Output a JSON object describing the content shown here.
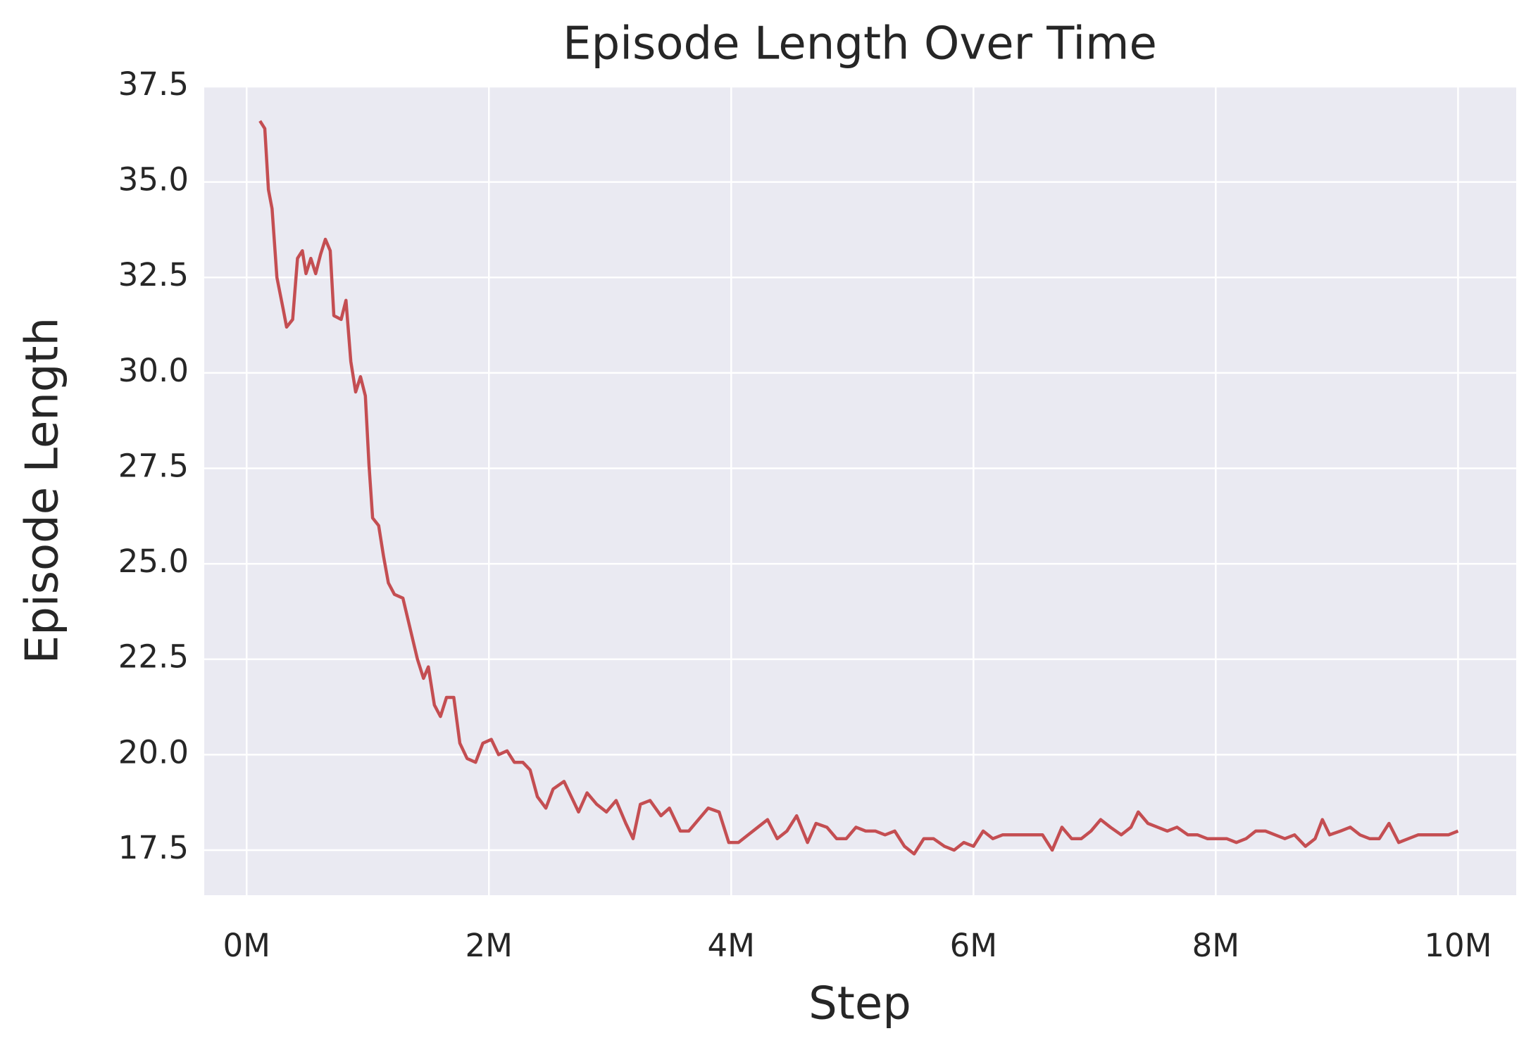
{
  "chart_data": {
    "type": "line",
    "title": "Episode Length Over Time",
    "xlabel": "Step",
    "ylabel": "Episode Length",
    "grid": true,
    "background": "#eaeaf2",
    "x": [
      110000,
      150000,
      180000,
      210000,
      250000,
      300000,
      330000,
      380000,
      420000,
      460000,
      490000,
      530000,
      570000,
      610000,
      650000,
      690000,
      720000,
      780000,
      820000,
      860000,
      900000,
      940000,
      980000,
      1010000,
      1040000,
      1090000,
      1130000,
      1170000,
      1220000,
      1290000,
      1350000,
      1410000,
      1460000,
      1500000,
      1550000,
      1600000,
      1650000,
      1710000,
      1760000,
      1820000,
      1890000,
      1950000,
      2020000,
      2080000,
      2150000,
      2210000,
      2280000,
      2340000,
      2400000,
      2470000,
      2530000,
      2620000,
      2680000,
      2740000,
      2810000,
      2890000,
      2970000,
      3050000,
      3130000,
      3190000,
      3250000,
      3330000,
      3420000,
      3490000,
      3580000,
      3650000,
      3730000,
      3810000,
      3900000,
      3980000,
      4060000,
      4140000,
      4220000,
      4300000,
      4380000,
      4460000,
      4540000,
      4630000,
      4700000,
      4790000,
      4870000,
      4950000,
      5030000,
      5110000,
      5190000,
      5270000,
      5350000,
      5430000,
      5510000,
      5590000,
      5670000,
      5760000,
      5840000,
      5920000,
      6000000,
      6080000,
      6160000,
      6240000,
      6410000,
      6570000,
      6650000,
      6730000,
      6810000,
      6890000,
      6970000,
      7050000,
      7130000,
      7220000,
      7300000,
      7360000,
      7440000,
      7520000,
      7600000,
      7680000,
      7770000,
      7850000,
      7930000,
      8010000,
      8090000,
      8170000,
      8250000,
      8330000,
      8410000,
      8490000,
      8570000,
      8650000,
      8740000,
      8820000,
      8880000,
      8940000,
      9030000,
      9110000,
      9190000,
      9270000,
      9350000,
      9430000,
      9510000,
      9590000,
      9670000,
      9750000,
      9840000,
      9920000,
      10000000
    ],
    "series": [
      {
        "name": "Episode Length",
        "color": "#c44e52",
        "values": [
          36.6,
          36.4,
          34.8,
          34.3,
          32.5,
          31.7,
          31.2,
          31.4,
          33.0,
          33.2,
          32.6,
          33.0,
          32.6,
          33.1,
          33.5,
          33.2,
          31.5,
          31.4,
          31.9,
          30.3,
          29.5,
          29.9,
          29.4,
          27.6,
          26.2,
          26.0,
          25.2,
          24.5,
          24.2,
          24.1,
          23.3,
          22.5,
          22.0,
          22.3,
          21.3,
          21.0,
          21.5,
          21.5,
          20.3,
          19.9,
          19.8,
          20.3,
          20.4,
          20.0,
          20.1,
          19.8,
          19.8,
          19.6,
          18.9,
          18.6,
          19.1,
          19.3,
          18.9,
          18.5,
          19.0,
          18.7,
          18.5,
          18.8,
          18.2,
          17.8,
          18.7,
          18.8,
          18.4,
          18.6,
          18.0,
          18.0,
          18.3,
          18.6,
          18.5,
          17.7,
          17.7,
          17.9,
          18.1,
          18.3,
          17.8,
          18.0,
          18.4,
          17.7,
          18.2,
          18.1,
          17.8,
          17.8,
          18.1,
          18.0,
          18.0,
          17.9,
          18.0,
          17.6,
          17.4,
          17.8,
          17.8,
          17.6,
          17.5,
          17.7,
          17.6,
          18.0,
          17.8,
          17.9,
          17.9,
          17.9,
          17.5,
          18.1,
          17.8,
          17.8,
          18.0,
          18.3,
          18.1,
          17.9,
          18.1,
          18.5,
          18.2,
          18.1,
          18.0,
          18.1,
          17.9,
          17.9,
          17.8,
          17.8,
          17.8,
          17.7,
          17.8,
          18.0,
          18.0,
          17.9,
          17.8,
          17.9,
          17.6,
          17.8,
          18.3,
          17.9,
          18.0,
          18.1,
          17.9,
          17.8,
          17.8,
          18.2,
          17.7,
          17.8,
          17.9,
          17.9,
          17.9,
          17.9,
          18.0
        ]
      }
    ],
    "xlim": [
      -350000,
      10480000
    ],
    "xticks": [
      {
        "value": 0,
        "label": "0M"
      },
      {
        "value": 2000000,
        "label": "2M"
      },
      {
        "value": 4000000,
        "label": "4M"
      },
      {
        "value": 6000000,
        "label": "6M"
      },
      {
        "value": 8000000,
        "label": "8M"
      },
      {
        "value": 10000000,
        "label": "10M"
      }
    ],
    "ylim": [
      16.32,
      37.5
    ],
    "yticks": [
      17.5,
      {
        "value": 20,
        "label": "20.0"
      },
      22.5,
      {
        "value": 25,
        "label": "25.0"
      },
      27.5,
      {
        "value": 30,
        "label": "30.0"
      },
      32.5,
      {
        "value": 35,
        "label": "35.0"
      },
      37.5
    ]
  }
}
